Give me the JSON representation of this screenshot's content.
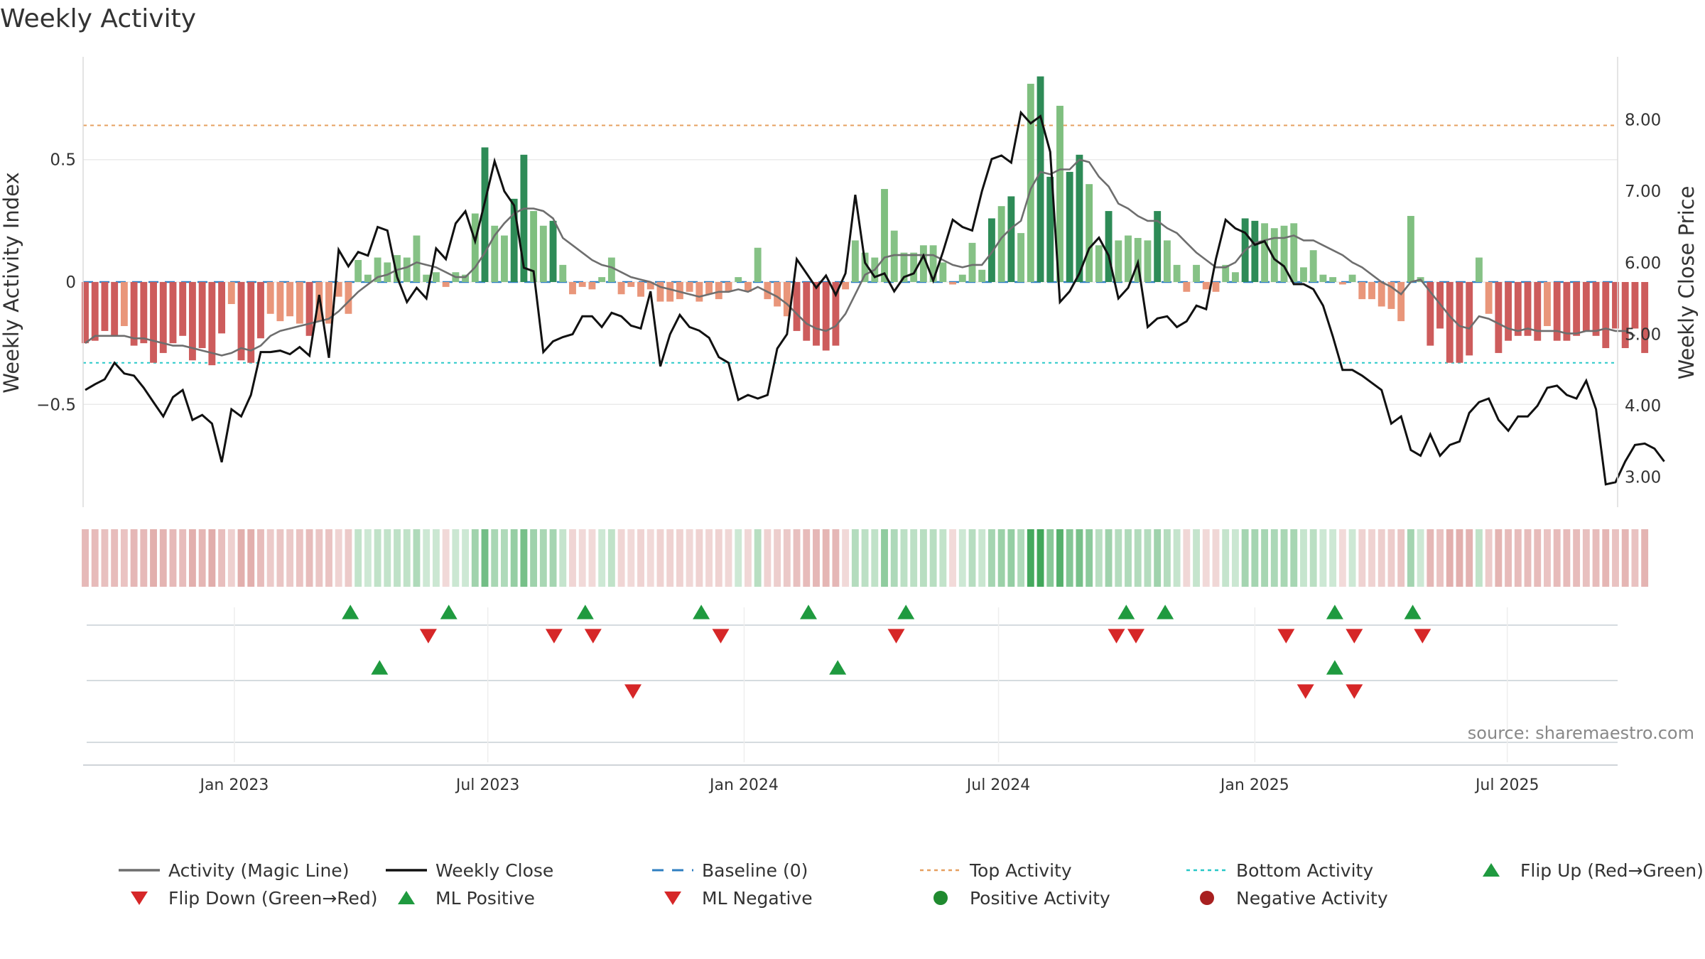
{
  "chart_data": {
    "type": "bar",
    "title": "Weekly Activity",
    "ylabel_left": "Weekly Activity Index",
    "ylabel_right": "Weekly Close Price",
    "source": "source: sharemaestro.com",
    "yticks_left": [
      {
        "value": 0.5,
        "label": "0.5"
      },
      {
        "value": 0,
        "label": "0"
      },
      {
        "value": -0.5,
        "label": "−0.5"
      }
    ],
    "ylim_left": [
      -0.92,
      0.92
    ],
    "yticks_right": [
      {
        "value": 8,
        "label": "8.00"
      },
      {
        "value": 7,
        "label": "7.00"
      },
      {
        "value": 6,
        "label": "6.00"
      },
      {
        "value": 5,
        "label": "5.00"
      },
      {
        "value": 4,
        "label": "4.00"
      },
      {
        "value": 3,
        "label": "3.00"
      }
    ],
    "ylim_right": [
      2.58,
      8.88
    ],
    "x_range_weeks": [
      0,
      157
    ],
    "xticks": [
      {
        "week": 15.3,
        "label": "Jan 2023"
      },
      {
        "week": 41.3,
        "label": "Jul 2023"
      },
      {
        "week": 67.6,
        "label": "Jan 2024"
      },
      {
        "week": 93.7,
        "label": "Jul 2024"
      },
      {
        "week": 120,
        "label": "Jan 2025"
      },
      {
        "week": 145.9,
        "label": "Jul 2025"
      }
    ],
    "top_activity": 0.64,
    "bottom_activity": -0.33,
    "activity": [
      -0.25,
      -0.24,
      -0.2,
      -0.22,
      -0.18,
      -0.26,
      -0.25,
      -0.33,
      -0.29,
      -0.25,
      -0.22,
      -0.32,
      -0.27,
      -0.34,
      -0.21,
      -0.09,
      -0.32,
      -0.33,
      -0.23,
      -0.13,
      -0.16,
      -0.14,
      -0.17,
      -0.22,
      -0.16,
      -0.17,
      -0.06,
      -0.13,
      0.09,
      0.03,
      0.1,
      0.08,
      0.11,
      0.1,
      0.19,
      0.03,
      0.04,
      -0.02,
      0.04,
      0.03,
      0.28,
      0.55,
      0.23,
      0.19,
      0.34,
      0.52,
      0.29,
      0.23,
      0.25,
      0.07,
      -0.05,
      -0.02,
      -0.03,
      0.02,
      0.1,
      -0.05,
      -0.02,
      -0.06,
      -0.03,
      -0.08,
      -0.08,
      -0.07,
      -0.04,
      -0.08,
      -0.05,
      -0.07,
      -0.04,
      0.02,
      -0.04,
      0.14,
      -0.07,
      -0.1,
      -0.14,
      -0.2,
      -0.24,
      -0.26,
      -0.28,
      -0.26,
      -0.03,
      0.17,
      0.12,
      0.1,
      0.38,
      0.21,
      0.12,
      0.12,
      0.15,
      0.15,
      0.08,
      -0.01,
      0.03,
      0.16,
      0.05,
      0.26,
      0.31,
      0.35,
      0.2,
      0.81,
      0.84,
      0.43,
      0.72,
      0.45,
      0.52,
      0.4,
      0.15,
      0.29,
      0.17,
      0.19,
      0.18,
      0.17,
      0.29,
      0.17,
      0.07,
      -0.04,
      0.07,
      -0.03,
      -0.04,
      0.07,
      0.04,
      0.26,
      0.25,
      0.24,
      0.22,
      0.23,
      0.24,
      0.06,
      0.13,
      0.03,
      0.02,
      -0.01,
      0.03,
      -0.07,
      -0.07,
      -0.1,
      -0.11,
      -0.16,
      0.27,
      0.02,
      -0.26,
      -0.19,
      -0.33,
      -0.33,
      -0.3,
      0.1,
      -0.13,
      -0.29,
      -0.24,
      -0.22,
      -0.22,
      -0.24,
      -0.18,
      -0.24,
      -0.24,
      -0.22,
      -0.2,
      -0.22,
      -0.27,
      -0.19,
      -0.27,
      -0.19,
      -0.29
    ],
    "magic_line": [
      -0.25,
      -0.22,
      -0.22,
      -0.22,
      -0.22,
      -0.23,
      -0.23,
      -0.24,
      -0.25,
      -0.26,
      -0.26,
      -0.27,
      -0.28,
      -0.29,
      -0.3,
      -0.29,
      -0.27,
      -0.28,
      -0.26,
      -0.22,
      -0.2,
      -0.19,
      -0.18,
      -0.17,
      -0.16,
      -0.15,
      -0.12,
      -0.08,
      -0.04,
      -0.01,
      0.02,
      0.03,
      0.05,
      0.06,
      0.08,
      0.07,
      0.06,
      0.04,
      0.02,
      0.02,
      0.06,
      0.12,
      0.19,
      0.24,
      0.28,
      0.3,
      0.3,
      0.29,
      0.26,
      0.18,
      0.15,
      0.12,
      0.09,
      0.07,
      0.06,
      0.04,
      0.02,
      0.01,
      0,
      -0.02,
      -0.03,
      -0.04,
      -0.05,
      -0.06,
      -0.05,
      -0.04,
      -0.04,
      -0.03,
      -0.04,
      -0.02,
      -0.04,
      -0.06,
      -0.09,
      -0.13,
      -0.17,
      -0.19,
      -0.2,
      -0.18,
      -0.13,
      -0.05,
      0.03,
      0.05,
      0.1,
      0.11,
      0.11,
      0.11,
      0.11,
      0.11,
      0.09,
      0.07,
      0.06,
      0.07,
      0.07,
      0.12,
      0.18,
      0.22,
      0.25,
      0.38,
      0.45,
      0.44,
      0.46,
      0.46,
      0.5,
      0.49,
      0.43,
      0.39,
      0.32,
      0.3,
      0.27,
      0.25,
      0.25,
      0.22,
      0.2,
      0.16,
      0.12,
      0.09,
      0.06,
      0.06,
      0.08,
      0.13,
      0.16,
      0.17,
      0.18,
      0.18,
      0.19,
      0.17,
      0.17,
      0.15,
      0.13,
      0.11,
      0.08,
      0.06,
      0.03,
      0,
      -0.02,
      -0.05,
      0,
      0.01,
      -0.04,
      -0.09,
      -0.14,
      -0.18,
      -0.19,
      -0.14,
      -0.15,
      -0.17,
      -0.19,
      -0.2,
      -0.19,
      -0.2,
      -0.2,
      -0.2,
      -0.21,
      -0.21,
      -0.2,
      -0.2,
      -0.19,
      -0.2,
      -0.2,
      -0.22
    ],
    "weekly_close": [
      4.22,
      4.3,
      4.37,
      4.6,
      4.45,
      4.42,
      4.25,
      4.05,
      3.85,
      4.12,
      4.22,
      3.8,
      3.87,
      3.75,
      3.21,
      3.95,
      3.85,
      4.15,
      4.75,
      4.75,
      4.77,
      4.72,
      4.82,
      4.7,
      5.55,
      4.67,
      6.18,
      5.95,
      6.15,
      6.1,
      6.5,
      6.45,
      5.8,
      5.45,
      5.65,
      5.5,
      6.2,
      6.05,
      6.55,
      6.72,
      6.3,
      6.85,
      7.42,
      7.0,
      6.8,
      5.93,
      5.88,
      4.75,
      4.9,
      4.96,
      5.0,
      5.25,
      5.25,
      5.1,
      5.3,
      5.25,
      5.12,
      5.08,
      5.6,
      4.55,
      5.0,
      5.27,
      5.1,
      5.05,
      4.95,
      4.68,
      4.6,
      4.08,
      4.15,
      4.1,
      4.15,
      4.8,
      5.0,
      6.05,
      5.85,
      5.65,
      5.82,
      5.55,
      5.85,
      6.95,
      6.0,
      5.8,
      5.85,
      5.6,
      5.8,
      5.85,
      6.1,
      5.75,
      6.15,
      6.6,
      6.5,
      6.45,
      7.0,
      7.45,
      7.5,
      7.4,
      8.1,
      7.95,
      8.05,
      7.55,
      5.45,
      5.6,
      5.85,
      6.2,
      6.35,
      6.1,
      5.5,
      5.65,
      6.0,
      5.1,
      5.22,
      5.25,
      5.1,
      5.18,
      5.4,
      5.35,
      6.05,
      6.6,
      6.48,
      6.42,
      6.25,
      6.3,
      6.05,
      5.95,
      5.7,
      5.7,
      5.63,
      5.4,
      4.97,
      4.5,
      4.5,
      4.42,
      4.32,
      4.22,
      3.75,
      3.85,
      3.38,
      3.3,
      3.6,
      3.3,
      3.45,
      3.5,
      3.9,
      4.05,
      4.1,
      3.8,
      3.65,
      3.85,
      3.85,
      4.0,
      4.25,
      4.28,
      4.15,
      4.1,
      4.35,
      3.95,
      2.9,
      2.93,
      3.22,
      3.45,
      3.47,
      3.4,
      3.22
    ],
    "flip_up_weeks": [
      27.2,
      37.3,
      51.3,
      63.2,
      74.2,
      84.2,
      106.8,
      110.8,
      128.2,
      136.2
    ],
    "flip_down_weeks": [
      35.2,
      48.1,
      52.1,
      65.2,
      83.2,
      105.8,
      107.8,
      123.2,
      130.2,
      137.2
    ],
    "ml_positive_weeks": [
      30.2,
      77.2,
      128.2
    ],
    "ml_negative_weeks": [
      56.2,
      125.2,
      130.2
    ],
    "legend": [
      {
        "label": "Activity (Magic Line)",
        "type": "line",
        "color": "#6e6e6e"
      },
      {
        "label": "Weekly Close",
        "type": "line",
        "color": "#111111"
      },
      {
        "label": "Baseline (0)",
        "type": "dash",
        "color": "#2f7fc1"
      },
      {
        "label": "Top Activity",
        "type": "dot",
        "color": "#e6a060"
      },
      {
        "label": "Bottom Activity",
        "type": "dot",
        "color": "#28c8c8"
      },
      {
        "label": "Flip Up (Red→Green)",
        "type": "tri-up",
        "color": "#1f9a3f"
      },
      {
        "label": "Flip Down (Green→Red)",
        "type": "tri-down",
        "color": "#d62728"
      },
      {
        "label": "ML Positive",
        "type": "tri-up",
        "color": "#1f9a3f"
      },
      {
        "label": "ML Negative",
        "type": "tri-down",
        "color": "#d62728"
      },
      {
        "label": "Positive Activity",
        "type": "circle",
        "color": "#1f8a2f"
      },
      {
        "label": "Negative Activity",
        "type": "circle",
        "color": "#a82020"
      }
    ]
  }
}
